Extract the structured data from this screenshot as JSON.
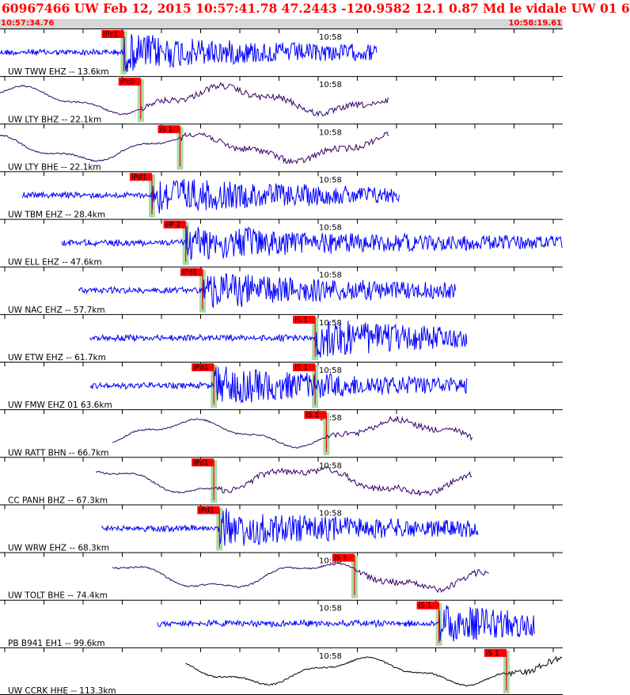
{
  "header": {
    "title": "60967466 UW Feb 12, 2015 10:57:41.78   47.2443 -120.9582 12.1 0.87 Md le vidale UW 01   6",
    "start_time": "10:57:34.76",
    "end_time": "10:58:19.61",
    "minute_label": "10:58"
  },
  "colors": {
    "title": "#ff0000",
    "timebar": "#d8d8d8",
    "trace_blue": "#0000ff",
    "trace_purple": "#330066",
    "trace_black": "#000000",
    "pick": "#ff0000",
    "pick_window": "#a8dca8"
  },
  "traces": [
    {
      "label": "UW TWW EHZ -- 13.6km",
      "color": "blue",
      "kind": "hf",
      "start": 0.0,
      "end": 0.67,
      "phases": [
        {
          "name": "iPc1",
          "t": 0.22,
          "tick": "P"
        }
      ]
    },
    {
      "label": "UW LTY BHZ -- 22.1km",
      "color": "purple",
      "kind": "lf",
      "start": 0.0,
      "end": 0.69,
      "phases": [
        {
          "name": "iPc0",
          "t": 0.25,
          "tick": "P"
        }
      ]
    },
    {
      "label": "UW LTY BHE -- 22.1km",
      "color": "purple",
      "kind": "lf",
      "start": 0.0,
      "end": 0.69,
      "phases": [
        {
          "name": "iS 1",
          "t": 0.32,
          "tick": "S"
        }
      ]
    },
    {
      "label": "UW TBM EHZ -- 28.4km",
      "color": "blue",
      "kind": "hf",
      "start": 0.04,
      "end": 0.71,
      "phases": [
        {
          "name": "iPd1",
          "t": 0.27,
          "tick": "P"
        }
      ]
    },
    {
      "label": "UW ELL EHZ -- 47.6km",
      "color": "blue",
      "kind": "hf",
      "start": 0.11,
      "end": 1.0,
      "phases": [
        {
          "name": "eP 2",
          "t": 0.33,
          "tick": "P"
        }
      ]
    },
    {
      "label": "UW NAC EHZ -- 57.7km",
      "color": "blue",
      "kind": "hf",
      "start": 0.14,
      "end": 0.81,
      "phases": [
        {
          "name": "iPd1",
          "t": 0.36,
          "tick": "P"
        }
      ]
    },
    {
      "label": "UW ETW EHZ -- 61.7km",
      "color": "blue",
      "kind": "hf",
      "start": 0.16,
      "end": 0.83,
      "phases": [
        {
          "name": "iS 1",
          "t": 0.56,
          "tick": "S"
        }
      ]
    },
    {
      "label": "UW FMW EHZ 01 63.6km",
      "color": "blue",
      "kind": "hf",
      "start": 0.16,
      "end": 0.83,
      "phases": [
        {
          "name": "iPd1",
          "t": 0.38,
          "tick": "P"
        },
        {
          "name": "iS 1",
          "t": 0.56,
          "tick": "S"
        }
      ]
    },
    {
      "label": "UW RATT BHN -- 66.7km",
      "color": "purple",
      "kind": "lf",
      "start": 0.2,
      "end": 0.84,
      "phases": [
        {
          "name": "iS 1",
          "t": 0.58,
          "tick": "S"
        }
      ]
    },
    {
      "label": "CC PANH BHZ -- 67.3km",
      "color": "purple",
      "kind": "lf",
      "start": 0.17,
      "end": 0.84,
      "phases": [
        {
          "name": "iPd1",
          "t": 0.38,
          "tick": "P"
        }
      ]
    },
    {
      "label": "UW WRW EHZ -- 68.3km",
      "color": "blue",
      "kind": "hf",
      "start": 0.18,
      "end": 0.85,
      "phases": [
        {
          "name": "iPd1",
          "t": 0.39,
          "tick": "P"
        }
      ]
    },
    {
      "label": "UW TOLT BHE -- 74.4km",
      "color": "purple",
      "kind": "lf",
      "start": 0.2,
      "end": 0.87,
      "phases": [
        {
          "name": "iS 1",
          "t": 0.63,
          "tick": "S"
        }
      ]
    },
    {
      "label": "PB B941 EH1 -- 99.6km",
      "color": "blue",
      "kind": "hf",
      "start": 0.28,
      "end": 0.95,
      "phases": [
        {
          "name": "iS 1",
          "t": 0.78,
          "tick": "S"
        }
      ]
    },
    {
      "label": "UW CCRK HHE -- 113.3km",
      "color": "black",
      "kind": "lf",
      "start": 0.33,
      "end": 1.0,
      "phases": [
        {
          "name": "iS 1",
          "t": 0.9,
          "tick": "S"
        }
      ]
    }
  ]
}
